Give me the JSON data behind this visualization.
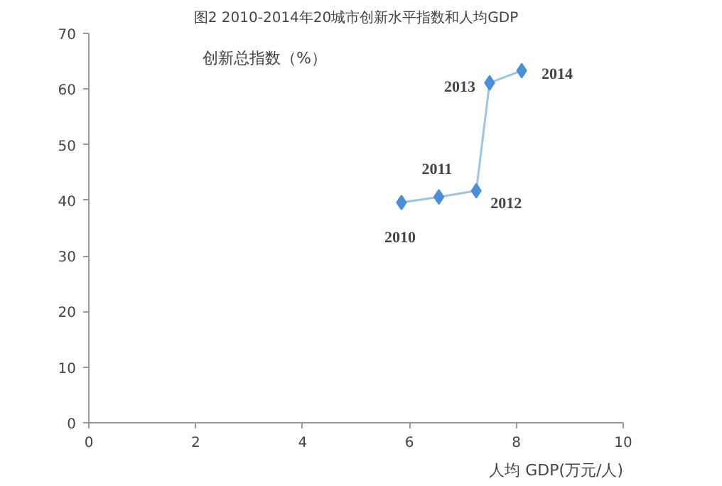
{
  "chart_data": {
    "type": "line",
    "title": "图2 2010-2014年20城市创新水平指数和人均GDP",
    "xlabel": "人均 GDP(万元/人)",
    "ylabel": "创新总指数（%）",
    "x": [
      5.85,
      6.55,
      7.25,
      7.5,
      8.1
    ],
    "series": [
      {
        "color": "#4a8fd8",
        "values": [
          39.6,
          40.6,
          41.7,
          61.1,
          63.3
        ]
      }
    ],
    "annotations": [
      {
        "text": "2010",
        "x": 5.85,
        "y": 39.6
      },
      {
        "text": "2011",
        "x": 6.55,
        "y": 40.6
      },
      {
        "text": "2012",
        "x": 7.25,
        "y": 41.7
      },
      {
        "text": "2013",
        "x": 7.5,
        "y": 61.1
      },
      {
        "text": "2014",
        "x": 8.1,
        "y": 63.3
      }
    ],
    "xlim": [
      0,
      10
    ],
    "xticks": [
      0,
      2,
      4,
      6,
      8,
      10
    ],
    "ylim": [
      0,
      70
    ],
    "yticks": [
      0,
      10,
      20,
      30,
      40,
      50,
      60,
      70
    ],
    "grid": false,
    "marker": "diamond",
    "line_style": "solid"
  }
}
